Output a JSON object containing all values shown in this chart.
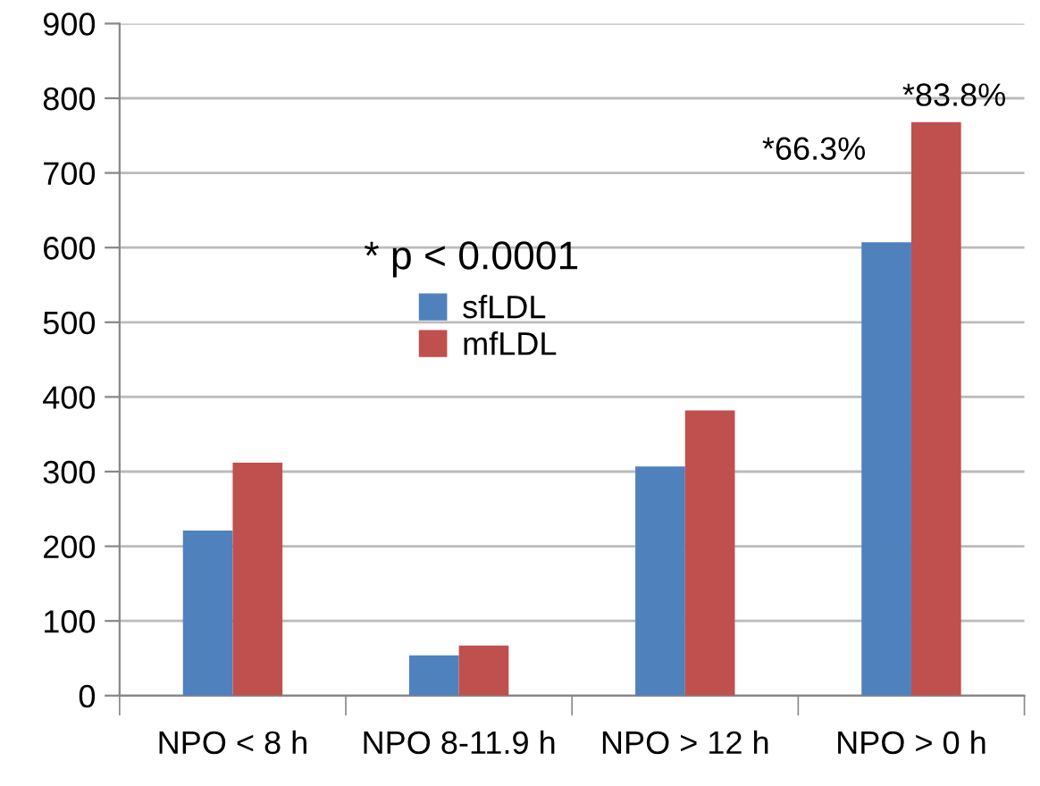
{
  "chart_data": {
    "type": "bar",
    "categories": [
      "NPO < 8 h",
      "NPO 8-11.9 h",
      "NPO > 12 h",
      "NPO > 0 h"
    ],
    "series": [
      {
        "name": "sfLDL",
        "color": "#4f81bd",
        "values": [
          221,
          54,
          307,
          607
        ]
      },
      {
        "name": "mfLDL",
        "color": "#c0504d",
        "values": [
          312,
          67,
          382,
          768
        ]
      }
    ],
    "ylim": [
      0,
      900
    ],
    "yticks": [
      0,
      100,
      200,
      300,
      400,
      500,
      600,
      700,
      800,
      900
    ],
    "grid": "y",
    "legend": "top left",
    "annotations": [
      "* p < 0.0001",
      "*66.3%",
      "*83.8%"
    ]
  }
}
